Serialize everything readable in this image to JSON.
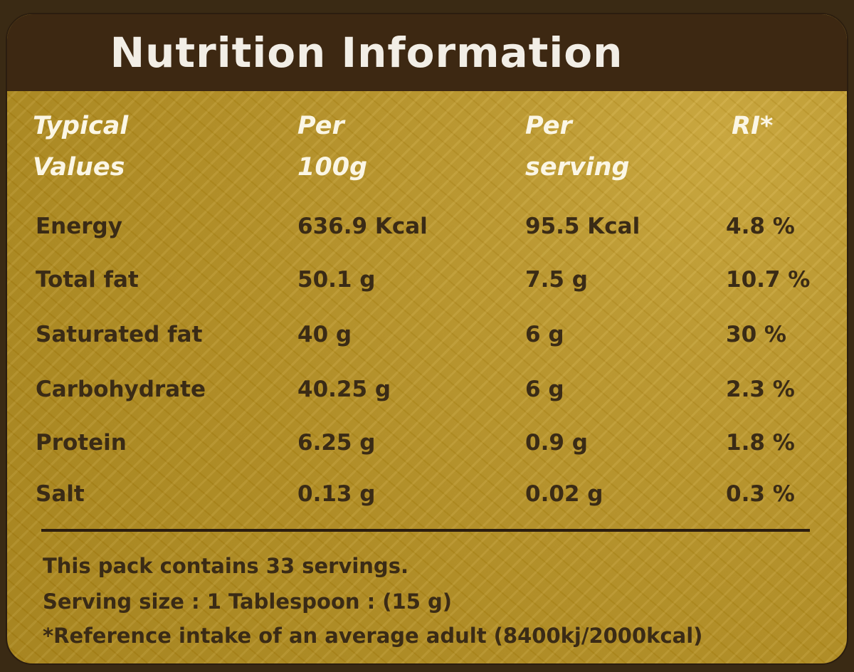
{
  "title": "Nutrition Information",
  "headers": {
    "typical_values": [
      "Typical",
      "Values"
    ],
    "per_100g": [
      "Per",
      "100g"
    ],
    "per_serving": [
      "Per",
      "serving"
    ],
    "ri": [
      "RI*"
    ]
  },
  "rows": [
    {
      "nutrient": "Energy",
      "per_100g": "636.9 Kcal",
      "per_serving": "95.5 Kcal",
      "ri": "4.8 %"
    },
    {
      "nutrient": "Total fat",
      "per_100g": "50.1 g",
      "per_serving": "7.5 g",
      "ri": "10.7 %"
    },
    {
      "nutrient": "Saturated fat",
      "per_100g": "40 g",
      "per_serving": "6 g",
      "ri": "30 %"
    },
    {
      "nutrient": "Carbohydrate",
      "per_100g": "40.25 g",
      "per_serving": "6 g",
      "ri": "2.3 %"
    },
    {
      "nutrient": "Protein",
      "per_100g": "6.25 g",
      "per_serving": "0.9 g",
      "ri": "1.8 %"
    },
    {
      "nutrient": "Salt",
      "per_100g": "0.13 g",
      "per_serving": "0.02 g",
      "ri": "0.3 %"
    }
  ],
  "footer": {
    "servings": "This pack contains 33 servings.",
    "serving_size": "Serving size : 1 Tablespoon : (15 g)",
    "reference": "*Reference intake of an average adult (8400kj/2000kcal)"
  },
  "colors": {
    "header_background": "#3d2812",
    "panel_gold": "#b38e20",
    "header_text": "#f2eee6",
    "body_text": "#3a2b16"
  }
}
